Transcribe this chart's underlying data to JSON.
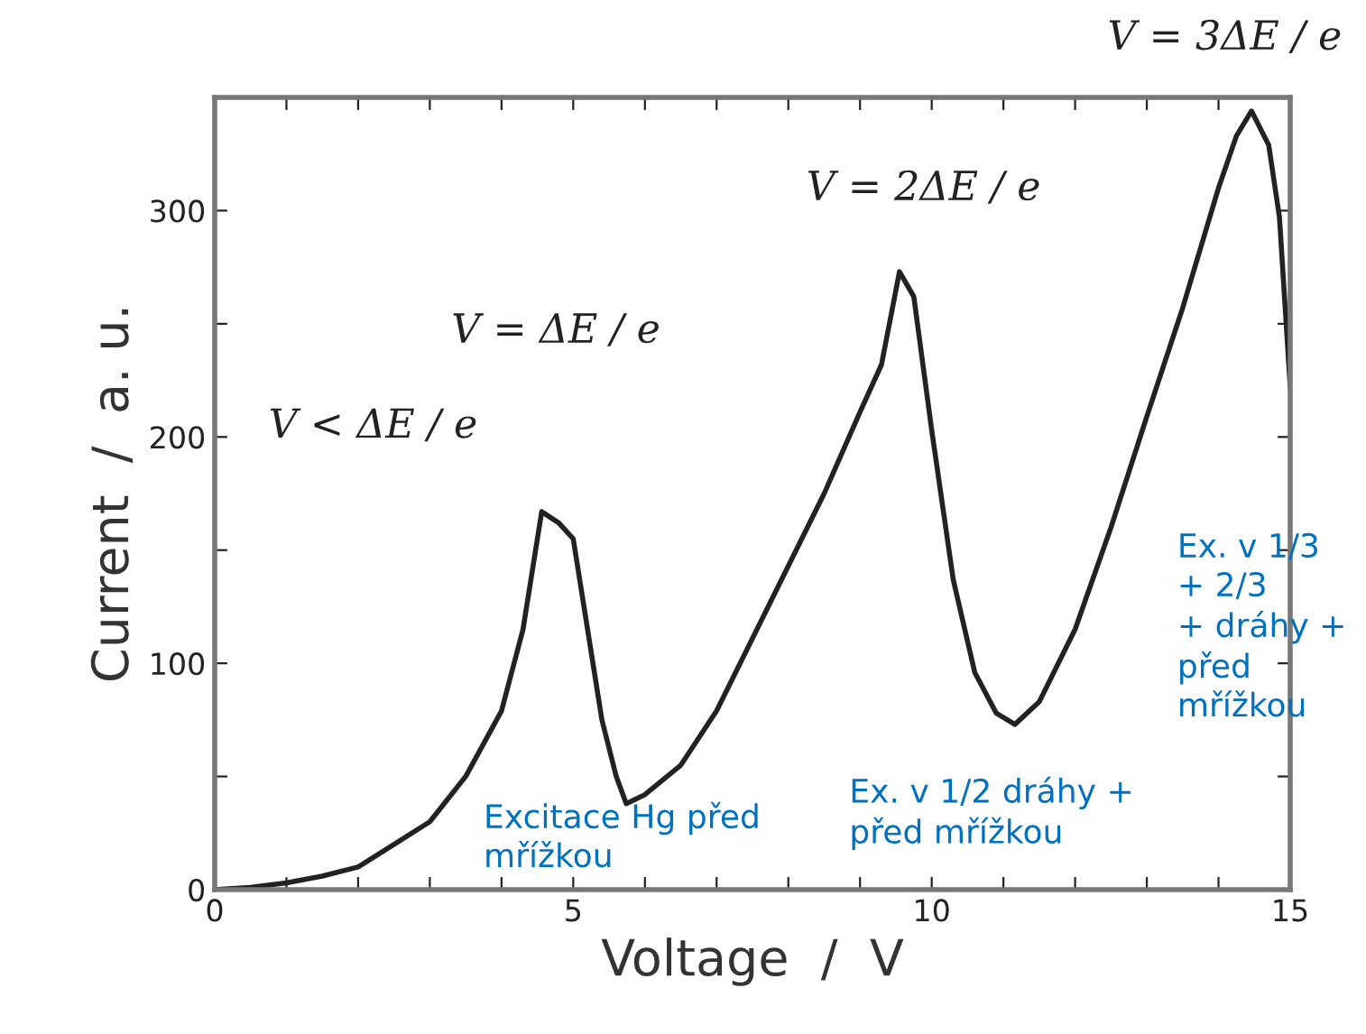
{
  "chart_data": {
    "type": "line",
    "xlabel": "Voltage  /  V",
    "ylabel": "Current  /  a. u.",
    "x": [
      0,
      0.5,
      1,
      1.5,
      2,
      2.5,
      3,
      3.5,
      4,
      4.3,
      4.56,
      4.8,
      5.0,
      5.2,
      5.4,
      5.6,
      5.74,
      6.0,
      6.5,
      7,
      7.5,
      8,
      8.5,
      9,
      9.3,
      9.55,
      9.75,
      10,
      10.3,
      10.6,
      10.9,
      11.16,
      11.5,
      12,
      12.5,
      13,
      13.5,
      14,
      14.25,
      14.46,
      14.7,
      14.85,
      15
    ],
    "series": [
      {
        "color": "#222222",
        "values": [
          0,
          1,
          3,
          6,
          10,
          20,
          30,
          50,
          79,
          115,
          167,
          162,
          155,
          115,
          75,
          50,
          38,
          42,
          55,
          79,
          111,
          143,
          175,
          211,
          232,
          273,
          262,
          203,
          137,
          96,
          78,
          73,
          83,
          115,
          160,
          209,
          257,
          310,
          333,
          344,
          329,
          297,
          222
        ]
      }
    ],
    "xlim": [
      0,
      15
    ],
    "ylim": [
      0,
      350
    ],
    "xticks": [
      0,
      {
        "value": 1,
        "label": null
      },
      {
        "value": 2,
        "label": null
      },
      {
        "value": 3,
        "label": null
      },
      {
        "value": 4,
        "label": null
      },
      5,
      {
        "value": 6,
        "label": null
      },
      {
        "value": 7,
        "label": null
      },
      {
        "value": 8,
        "label": null
      },
      {
        "value": 9,
        "label": null
      },
      10,
      {
        "value": 11,
        "label": null
      },
      {
        "value": 12,
        "label": null
      },
      {
        "value": 13,
        "label": null
      },
      {
        "value": 14,
        "label": null
      },
      15
    ],
    "yticks": [
      0,
      {
        "value": 50,
        "label": null
      },
      100,
      {
        "value": 150,
        "label": null
      },
      200,
      {
        "value": 250,
        "label": null
      },
      300
    ],
    "grid": false,
    "legend": false,
    "marker": "none",
    "line_style": "solid",
    "annotations": [
      "V < ΔE / e",
      "V = ΔE / e",
      "V = 2ΔE / e",
      "V = 3ΔE / e",
      "Excitace Hg před\nmřížkou",
      "Ex. v 1/2 dráhy +\npřed mřížkou",
      "Ex. v 1/3\n+ 2/3\n+ dráhy +\npřed\nmřížkou"
    ]
  }
}
